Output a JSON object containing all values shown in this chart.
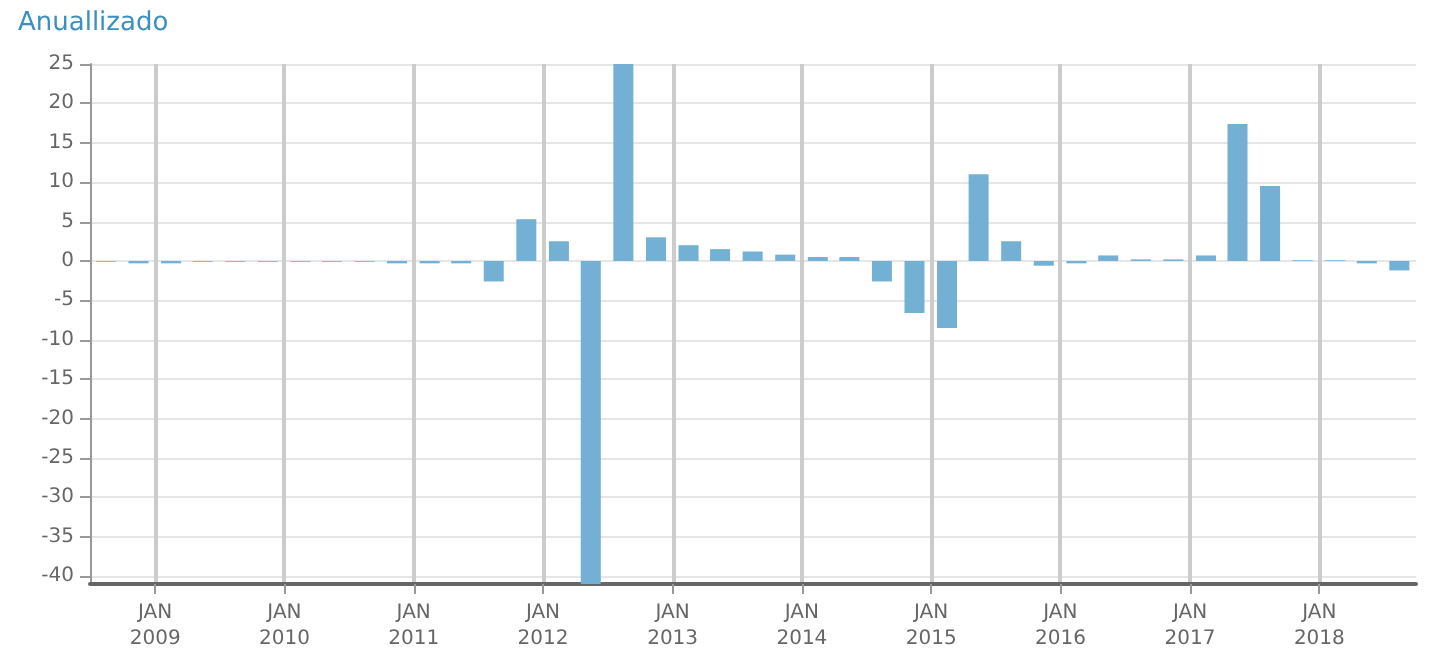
{
  "chart_data": {
    "type": "bar",
    "title": "Anuallizado",
    "x": [
      "2008-08-15",
      "2008-11-15",
      "2009-02-15",
      "2009-05-15",
      "2009-08-15",
      "2009-11-15",
      "2010-02-15",
      "2010-05-15",
      "2010-08-15",
      "2010-11-15",
      "2011-02-15",
      "2011-05-15",
      "2011-08-15",
      "2011-11-15",
      "2012-02-15",
      "2012-05-15",
      "2012-08-15",
      "2012-11-15",
      "2013-02-15",
      "2013-05-15",
      "2013-08-15",
      "2013-11-15",
      "2014-02-15",
      "2014-05-15",
      "2014-08-15",
      "2014-11-15",
      "2015-02-15",
      "2015-05-15",
      "2015-08-15",
      "2015-11-15",
      "2016-02-15",
      "2016-05-15",
      "2016-08-15",
      "2016-11-15",
      "2017-02-15",
      "2017-05-15",
      "2017-08-15",
      "2017-11-15",
      "2018-02-15",
      "2018-05-15",
      "2018-08-15"
    ],
    "values": [
      -0.1,
      -0.3,
      -0.3,
      -0.1,
      -0.1,
      -0.1,
      -0.1,
      -0.1,
      -0.1,
      -0.3,
      -0.3,
      -0.3,
      -2.6,
      5.3,
      2.5,
      -41,
      25,
      3,
      2,
      1.5,
      1.2,
      0.8,
      0.5,
      0.5,
      -2.6,
      -6.6,
      -8.5,
      11,
      2.5,
      -0.6,
      -0.3,
      0.7,
      0.2,
      0.2,
      0.7,
      17.4,
      9.5,
      0.1,
      0.1,
      -0.3,
      -1.2
    ],
    "color": "#74b0d4",
    "xlim": [
      "2008-07-01",
      "2018-10-01"
    ],
    "xticks": [
      {
        "value": "2009-01-01",
        "label": "JAN\n2009"
      },
      {
        "value": "2010-01-01",
        "label": "JAN\n2010"
      },
      {
        "value": "2011-01-01",
        "label": "JAN\n2011"
      },
      {
        "value": "2012-01-01",
        "label": "JAN\n2012"
      },
      {
        "value": "2013-01-01",
        "label": "JAN\n2013"
      },
      {
        "value": "2014-01-01",
        "label": "JAN\n2014"
      },
      {
        "value": "2015-01-01",
        "label": "JAN\n2015"
      },
      {
        "value": "2016-01-01",
        "label": "JAN\n2016"
      },
      {
        "value": "2017-01-01",
        "label": "JAN\n2017"
      },
      {
        "value": "2018-01-01",
        "label": "JAN\n2018"
      }
    ],
    "ylim": [
      -41,
      25
    ],
    "yticks": [
      -40,
      -35,
      -30,
      -25,
      -20,
      -15,
      -10,
      -5,
      0,
      5,
      10,
      15,
      20,
      25
    ],
    "grid": true
  }
}
